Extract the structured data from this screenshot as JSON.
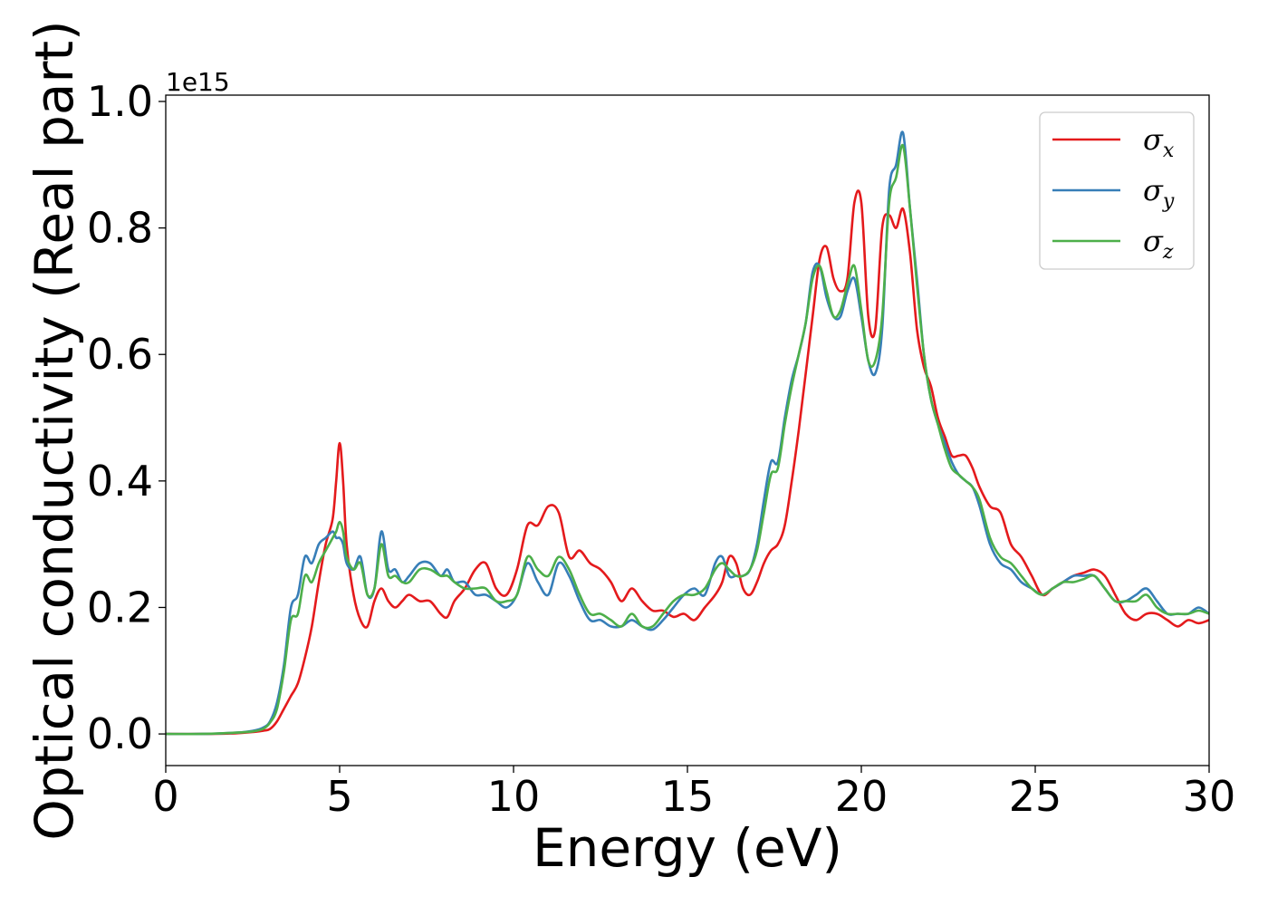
{
  "chart_data": {
    "type": "line",
    "title": "",
    "xlabel": "Energy (eV)",
    "ylabel": "Optical conductivity (Real part)",
    "y_offset_label": "1e15",
    "xlim": [
      0,
      30
    ],
    "ylim": [
      -0.05,
      1.01
    ],
    "xticks": [
      0,
      5,
      10,
      15,
      20,
      25,
      30
    ],
    "yticks": [
      0.0,
      0.2,
      0.4,
      0.6,
      0.8,
      1.0
    ],
    "xtick_labels": [
      "0",
      "5",
      "10",
      "15",
      "20",
      "25",
      "30"
    ],
    "ytick_labels": [
      "0.0",
      "0.2",
      "0.4",
      "0.6",
      "0.8",
      "1.0"
    ],
    "grid": false,
    "legend_position": "top-right",
    "series": [
      {
        "name": "σ",
        "name_sub": "x",
        "color": "#e41a1c",
        "x": [
          0,
          1,
          2,
          2.5,
          2.8,
          3.0,
          3.2,
          3.4,
          3.6,
          3.8,
          4.0,
          4.2,
          4.4,
          4.6,
          4.8,
          4.9,
          5.0,
          5.1,
          5.2,
          5.4,
          5.6,
          5.8,
          6.0,
          6.2,
          6.4,
          6.6,
          6.8,
          7.0,
          7.3,
          7.6,
          7.9,
          8.1,
          8.3,
          8.6,
          8.9,
          9.2,
          9.5,
          9.8,
          10.1,
          10.4,
          10.7,
          11.0,
          11.3,
          11.6,
          11.9,
          12.2,
          12.5,
          12.8,
          13.1,
          13.4,
          13.7,
          14.0,
          14.3,
          14.6,
          14.9,
          15.2,
          15.5,
          15.8,
          16.0,
          16.2,
          16.4,
          16.6,
          16.8,
          17.0,
          17.2,
          17.4,
          17.6,
          17.8,
          18.0,
          18.2,
          18.4,
          18.6,
          18.8,
          19.0,
          19.2,
          19.4,
          19.6,
          19.8,
          20.0,
          20.2,
          20.4,
          20.6,
          20.8,
          21.0,
          21.2,
          21.4,
          21.6,
          21.8,
          22.0,
          22.2,
          22.4,
          22.6,
          22.8,
          23.0,
          23.2,
          23.4,
          23.7,
          24.0,
          24.3,
          24.6,
          24.9,
          25.2,
          25.5,
          25.8,
          26.1,
          26.4,
          26.7,
          27.0,
          27.3,
          27.6,
          27.9,
          28.2,
          28.5,
          28.8,
          29.1,
          29.4,
          29.7,
          30.0
        ],
        "values": [
          0.0,
          0.0,
          0.001,
          0.003,
          0.005,
          0.008,
          0.02,
          0.04,
          0.06,
          0.08,
          0.12,
          0.17,
          0.24,
          0.3,
          0.34,
          0.4,
          0.46,
          0.4,
          0.3,
          0.22,
          0.18,
          0.17,
          0.21,
          0.23,
          0.21,
          0.2,
          0.21,
          0.22,
          0.21,
          0.21,
          0.19,
          0.185,
          0.21,
          0.23,
          0.26,
          0.27,
          0.23,
          0.22,
          0.26,
          0.33,
          0.33,
          0.36,
          0.35,
          0.28,
          0.29,
          0.27,
          0.26,
          0.24,
          0.21,
          0.23,
          0.21,
          0.195,
          0.195,
          0.185,
          0.19,
          0.18,
          0.2,
          0.22,
          0.24,
          0.28,
          0.27,
          0.23,
          0.22,
          0.24,
          0.27,
          0.29,
          0.3,
          0.33,
          0.4,
          0.48,
          0.57,
          0.66,
          0.75,
          0.77,
          0.72,
          0.7,
          0.72,
          0.84,
          0.84,
          0.66,
          0.64,
          0.8,
          0.82,
          0.8,
          0.83,
          0.76,
          0.64,
          0.58,
          0.55,
          0.5,
          0.47,
          0.44,
          0.44,
          0.44,
          0.42,
          0.39,
          0.36,
          0.35,
          0.3,
          0.28,
          0.25,
          0.22,
          0.23,
          0.24,
          0.25,
          0.255,
          0.26,
          0.25,
          0.22,
          0.19,
          0.18,
          0.19,
          0.19,
          0.18,
          0.17,
          0.18,
          0.175,
          0.18
        ]
      },
      {
        "name": "σ",
        "name_sub": "y",
        "color": "#377eb8",
        "x": [
          0,
          1,
          2,
          2.5,
          2.8,
          3.0,
          3.2,
          3.4,
          3.6,
          3.8,
          4.0,
          4.2,
          4.4,
          4.6,
          4.8,
          4.9,
          5.0,
          5.1,
          5.2,
          5.4,
          5.6,
          5.8,
          6.0,
          6.2,
          6.4,
          6.6,
          6.8,
          7.0,
          7.3,
          7.6,
          7.9,
          8.1,
          8.3,
          8.6,
          8.9,
          9.2,
          9.5,
          9.8,
          10.1,
          10.4,
          10.7,
          11.0,
          11.3,
          11.6,
          11.9,
          12.2,
          12.5,
          12.8,
          13.1,
          13.4,
          13.7,
          14.0,
          14.3,
          14.6,
          14.9,
          15.2,
          15.5,
          15.8,
          16.0,
          16.2,
          16.4,
          16.6,
          16.8,
          17.0,
          17.2,
          17.4,
          17.6,
          17.8,
          18.0,
          18.2,
          18.4,
          18.6,
          18.8,
          19.0,
          19.2,
          19.4,
          19.6,
          19.8,
          20.0,
          20.2,
          20.4,
          20.6,
          20.8,
          21.0,
          21.2,
          21.4,
          21.6,
          21.8,
          22.0,
          22.2,
          22.4,
          22.6,
          22.8,
          23.0,
          23.2,
          23.4,
          23.7,
          24.0,
          24.3,
          24.6,
          24.9,
          25.2,
          25.5,
          25.8,
          26.1,
          26.4,
          26.7,
          27.0,
          27.3,
          27.6,
          27.9,
          28.2,
          28.5,
          28.8,
          29.1,
          29.4,
          29.7,
          30.0
        ],
        "values": [
          0.0,
          0.0,
          0.002,
          0.005,
          0.01,
          0.02,
          0.05,
          0.11,
          0.2,
          0.22,
          0.28,
          0.27,
          0.3,
          0.31,
          0.32,
          0.31,
          0.31,
          0.3,
          0.27,
          0.26,
          0.28,
          0.22,
          0.23,
          0.32,
          0.26,
          0.26,
          0.24,
          0.25,
          0.27,
          0.27,
          0.25,
          0.26,
          0.24,
          0.24,
          0.22,
          0.22,
          0.21,
          0.2,
          0.22,
          0.27,
          0.24,
          0.22,
          0.27,
          0.25,
          0.21,
          0.18,
          0.18,
          0.17,
          0.17,
          0.18,
          0.17,
          0.165,
          0.18,
          0.2,
          0.22,
          0.23,
          0.22,
          0.27,
          0.28,
          0.25,
          0.25,
          0.25,
          0.26,
          0.3,
          0.37,
          0.43,
          0.43,
          0.5,
          0.56,
          0.6,
          0.65,
          0.73,
          0.74,
          0.69,
          0.66,
          0.66,
          0.7,
          0.72,
          0.66,
          0.59,
          0.57,
          0.64,
          0.86,
          0.9,
          0.95,
          0.83,
          0.72,
          0.6,
          0.53,
          0.49,
          0.46,
          0.43,
          0.41,
          0.4,
          0.39,
          0.36,
          0.3,
          0.27,
          0.26,
          0.24,
          0.23,
          0.22,
          0.23,
          0.24,
          0.25,
          0.25,
          0.25,
          0.23,
          0.21,
          0.21,
          0.22,
          0.23,
          0.21,
          0.19,
          0.19,
          0.19,
          0.2,
          0.19
        ]
      },
      {
        "name": "σ",
        "name_sub": "z",
        "color": "#4daf4a",
        "x": [
          0,
          1,
          2,
          2.5,
          2.8,
          3.0,
          3.2,
          3.4,
          3.6,
          3.8,
          4.0,
          4.2,
          4.4,
          4.6,
          4.8,
          4.9,
          5.0,
          5.1,
          5.2,
          5.4,
          5.6,
          5.8,
          6.0,
          6.2,
          6.4,
          6.6,
          6.8,
          7.0,
          7.3,
          7.6,
          7.9,
          8.1,
          8.3,
          8.6,
          8.9,
          9.2,
          9.5,
          9.8,
          10.1,
          10.4,
          10.7,
          11.0,
          11.3,
          11.6,
          11.9,
          12.2,
          12.5,
          12.8,
          13.1,
          13.4,
          13.7,
          14.0,
          14.3,
          14.6,
          14.9,
          15.2,
          15.5,
          15.8,
          16.0,
          16.2,
          16.4,
          16.6,
          16.8,
          17.0,
          17.2,
          17.4,
          17.6,
          17.8,
          18.0,
          18.2,
          18.4,
          18.6,
          18.8,
          19.0,
          19.2,
          19.4,
          19.6,
          19.8,
          20.0,
          20.2,
          20.4,
          20.6,
          20.8,
          21.0,
          21.2,
          21.4,
          21.6,
          21.8,
          22.0,
          22.2,
          22.4,
          22.6,
          22.8,
          23.0,
          23.2,
          23.4,
          23.7,
          24.0,
          24.3,
          24.6,
          24.9,
          25.2,
          25.5,
          25.8,
          26.1,
          26.4,
          26.7,
          27.0,
          27.3,
          27.6,
          27.9,
          28.2,
          28.5,
          28.8,
          29.1,
          29.4,
          29.7,
          30.0
        ],
        "values": [
          0.0,
          0.0,
          0.002,
          0.004,
          0.008,
          0.018,
          0.04,
          0.1,
          0.18,
          0.19,
          0.25,
          0.24,
          0.27,
          0.29,
          0.31,
          0.32,
          0.335,
          0.32,
          0.28,
          0.26,
          0.27,
          0.22,
          0.23,
          0.3,
          0.25,
          0.25,
          0.24,
          0.24,
          0.26,
          0.26,
          0.25,
          0.25,
          0.24,
          0.23,
          0.23,
          0.23,
          0.21,
          0.21,
          0.22,
          0.28,
          0.26,
          0.25,
          0.28,
          0.26,
          0.22,
          0.19,
          0.19,
          0.18,
          0.17,
          0.19,
          0.17,
          0.17,
          0.19,
          0.21,
          0.22,
          0.22,
          0.23,
          0.26,
          0.27,
          0.26,
          0.25,
          0.25,
          0.26,
          0.29,
          0.35,
          0.41,
          0.42,
          0.49,
          0.55,
          0.6,
          0.65,
          0.72,
          0.74,
          0.7,
          0.66,
          0.67,
          0.71,
          0.74,
          0.67,
          0.59,
          0.59,
          0.66,
          0.84,
          0.88,
          0.93,
          0.83,
          0.71,
          0.6,
          0.53,
          0.49,
          0.45,
          0.42,
          0.41,
          0.4,
          0.39,
          0.37,
          0.31,
          0.28,
          0.27,
          0.25,
          0.23,
          0.22,
          0.23,
          0.24,
          0.24,
          0.245,
          0.25,
          0.23,
          0.21,
          0.21,
          0.21,
          0.22,
          0.2,
          0.19,
          0.19,
          0.19,
          0.195,
          0.19
        ]
      }
    ]
  }
}
